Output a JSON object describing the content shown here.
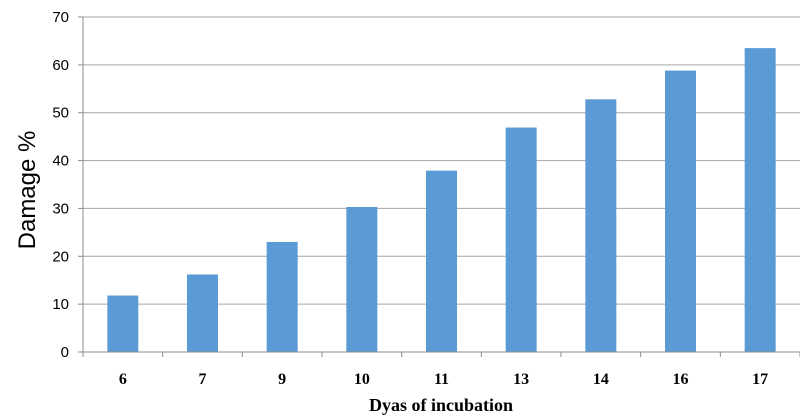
{
  "chart_data": {
    "type": "bar",
    "categories": [
      "6",
      "7",
      "9",
      "10",
      "11",
      "13",
      "14",
      "16",
      "17"
    ],
    "values": [
      11.8,
      16.2,
      23.0,
      30.3,
      37.9,
      46.9,
      52.8,
      58.8,
      63.5
    ],
    "xlabel": "Dyas of incubation",
    "ylabel": "Damage %",
    "ylim": [
      0,
      70
    ],
    "yticks": [
      0,
      10,
      20,
      30,
      40,
      50,
      60,
      70
    ],
    "grid": "horizontal",
    "colors": {
      "bar": "#5b9bd5",
      "grid": "#a6a6a6",
      "axis": "#8c8c8c"
    }
  }
}
